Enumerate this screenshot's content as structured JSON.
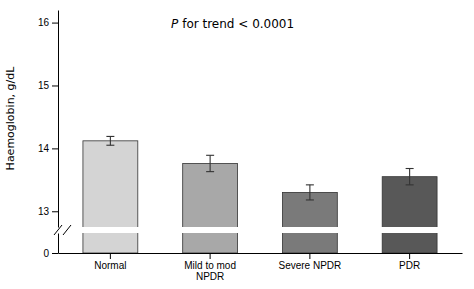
{
  "chart_data": {
    "type": "bar",
    "categories": [
      "Normal",
      "Mild to mod\nNPDR",
      "Severe NPDR",
      "PDR"
    ],
    "values": [
      14.12,
      13.76,
      13.3,
      13.55
    ],
    "errors": [
      0.07,
      0.13,
      0.12,
      0.13
    ],
    "colors": [
      "#d4d4d4",
      "#a8a8a8",
      "#7a7a7a",
      "#585858"
    ],
    "y_label": "Haemoglobin, g/dL",
    "annotation": "P for trend < 0.0001",
    "ylim": [
      12.75,
      16.2
    ],
    "yticks": [
      13,
      14,
      15,
      16
    ],
    "stub_ylim": [
      0,
      0.35
    ],
    "stub_yticks": [
      0
    ]
  }
}
